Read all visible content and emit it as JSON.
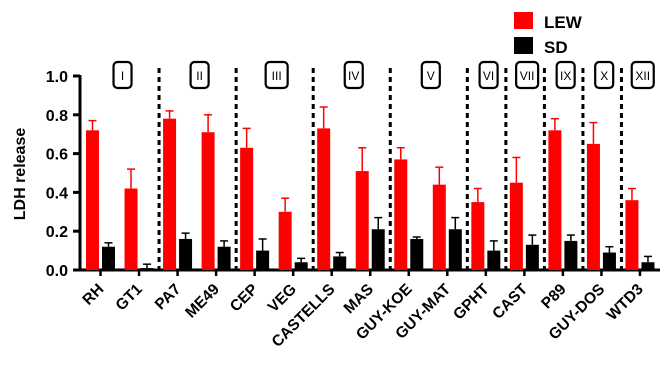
{
  "chart_data": {
    "type": "bar",
    "title": "",
    "xlabel": "",
    "ylabel": "LDH release",
    "ylim": [
      0,
      1.0
    ],
    "yticks": [
      "0.0",
      "0.2",
      "0.4",
      "0.6",
      "0.8",
      "1.0"
    ],
    "categories": [
      "RH",
      "GT1",
      "PA7",
      "ME49",
      "CEP",
      "VEG",
      "CASTELLS",
      "MAS",
      "GUY-KOE",
      "GUY-MAT",
      "GPHT",
      "CAST",
      "P89",
      "GUY-DOS",
      "WTD3"
    ],
    "series": [
      {
        "name": "LEW",
        "color": "#ff0000",
        "values": [
          0.72,
          0.42,
          0.78,
          0.71,
          0.63,
          0.3,
          0.73,
          0.51,
          0.57,
          0.44,
          0.35,
          0.45,
          0.72,
          0.65,
          0.36
        ],
        "errors": [
          0.05,
          0.1,
          0.04,
          0.09,
          0.1,
          0.07,
          0.11,
          0.12,
          0.06,
          0.09,
          0.07,
          0.13,
          0.06,
          0.11,
          0.06
        ]
      },
      {
        "name": "SD",
        "color": "#000000",
        "values": [
          0.12,
          0.01,
          0.16,
          0.12,
          0.1,
          0.04,
          0.07,
          0.21,
          0.16,
          0.21,
          0.1,
          0.13,
          0.15,
          0.09,
          0.04
        ],
        "errors": [
          0.02,
          0.02,
          0.03,
          0.03,
          0.06,
          0.02,
          0.02,
          0.06,
          0.01,
          0.06,
          0.05,
          0.05,
          0.03,
          0.03,
          0.03
        ]
      }
    ],
    "groups": [
      {
        "label": "I",
        "start": 0,
        "end": 1
      },
      {
        "label": "II",
        "start": 2,
        "end": 3
      },
      {
        "label": "III",
        "start": 4,
        "end": 5
      },
      {
        "label": "IV",
        "start": 6,
        "end": 7
      },
      {
        "label": "V",
        "start": 8,
        "end": 9
      },
      {
        "label": "VI",
        "start": 10,
        "end": 10
      },
      {
        "label": "VII",
        "start": 11,
        "end": 11
      },
      {
        "label": "IX",
        "start": 12,
        "end": 12
      },
      {
        "label": "X",
        "start": 13,
        "end": 13
      },
      {
        "label": "XII",
        "start": 14,
        "end": 14
      }
    ],
    "grid": false,
    "legend_position": "top-right"
  }
}
